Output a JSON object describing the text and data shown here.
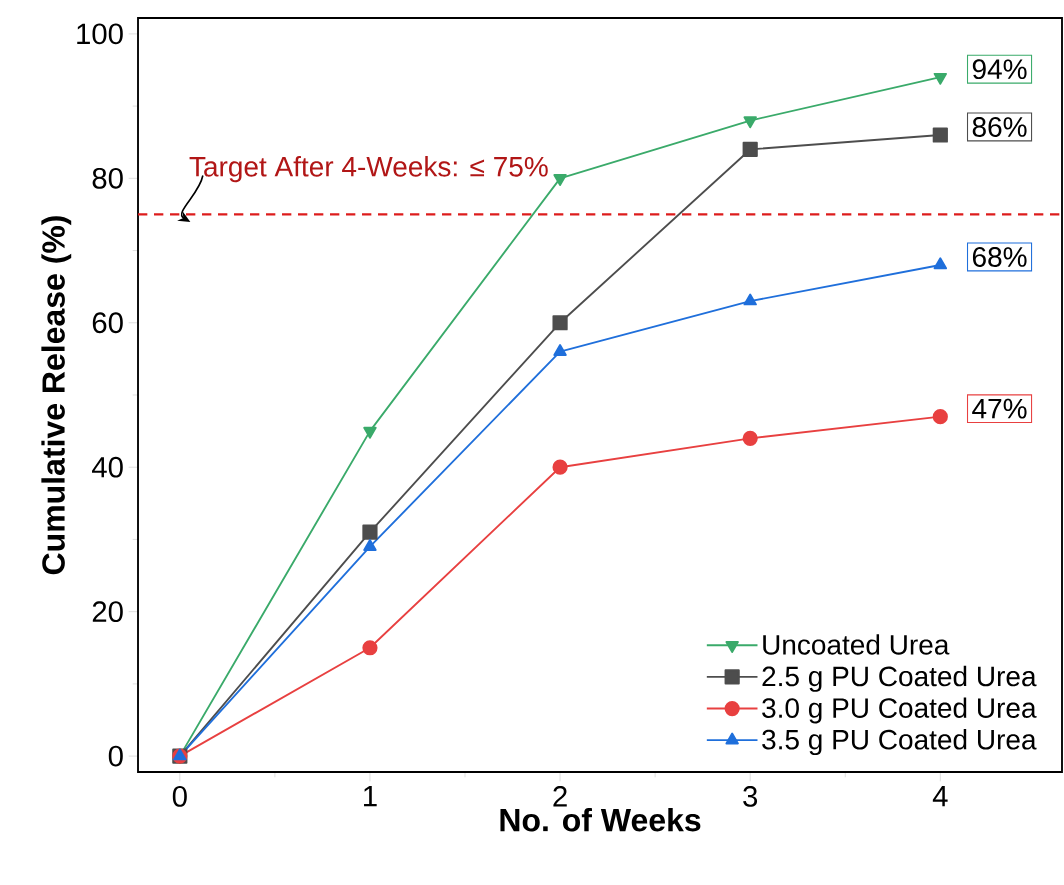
{
  "chart_data": {
    "type": "line",
    "xlabel": "No. of Weeks",
    "ylabel": "Cumulative Release (%)",
    "x": [
      0,
      1,
      2,
      3,
      4
    ],
    "series": [
      {
        "name": "Uncoated Urea",
        "color": "#3aaa6a",
        "marker": "triangle-down",
        "values": [
          0,
          45,
          80,
          88,
          94
        ],
        "value_labels": [
          null,
          null,
          null,
          null,
          "94%"
        ]
      },
      {
        "name": "2.5 g PU Coated Urea",
        "color": "#4d4d4d",
        "marker": "square",
        "values": [
          0,
          31,
          60,
          84,
          86
        ],
        "value_labels": [
          null,
          null,
          null,
          null,
          "86%"
        ]
      },
      {
        "name": "3.0 g PU Coated Urea",
        "color": "#e84040",
        "marker": "circle",
        "values": [
          0,
          15,
          40,
          44,
          47
        ],
        "value_labels": [
          null,
          null,
          null,
          null,
          "47%"
        ]
      },
      {
        "name": "3.5 g PU Coated Urea",
        "color": "#1f6fdb",
        "marker": "triangle",
        "values": [
          0,
          29,
          56,
          63,
          68
        ],
        "value_labels": [
          null,
          null,
          null,
          null,
          "68%"
        ]
      }
    ],
    "xlim": [
      -0.22,
      4.64
    ],
    "ylim": [
      -2.2,
      102.2
    ],
    "xticks": [
      0,
      1,
      2,
      3,
      4
    ],
    "yticks": [
      0,
      20,
      40,
      60,
      80,
      100
    ],
    "ref_lines": [
      {
        "axis": "y",
        "value": 75,
        "label": "Target After 4-Weeks:  ≤ 75%",
        "color": "#dd1c1c",
        "line_style": "dashed"
      }
    ],
    "grid": false,
    "legend": "bottom right",
    "line_style": "solid"
  }
}
